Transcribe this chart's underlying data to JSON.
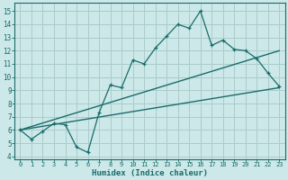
{
  "xlabel": "Humidex (Indice chaleur)",
  "bg_color": "#cce8e8",
  "grid_color": "#aacccc",
  "line_color": "#1a6b6b",
  "xlim": [
    -0.5,
    23.5
  ],
  "ylim": [
    3.8,
    15.6
  ],
  "yticks": [
    4,
    5,
    6,
    7,
    8,
    9,
    10,
    11,
    12,
    13,
    14,
    15
  ],
  "xticks": [
    0,
    1,
    2,
    3,
    4,
    5,
    6,
    7,
    8,
    9,
    10,
    11,
    12,
    13,
    14,
    15,
    16,
    17,
    18,
    19,
    20,
    21,
    22,
    23
  ],
  "curve1_x": [
    0,
    1,
    2,
    3,
    4,
    5,
    6,
    7,
    8,
    9,
    10,
    11,
    12,
    13,
    14,
    15,
    16,
    17,
    18,
    19,
    20,
    21,
    22,
    23
  ],
  "curve1_y": [
    6.0,
    5.3,
    5.9,
    6.5,
    6.4,
    4.7,
    4.3,
    7.3,
    9.4,
    9.2,
    11.3,
    11.0,
    12.2,
    13.1,
    14.0,
    13.7,
    15.0,
    12.4,
    12.8,
    12.1,
    12.0,
    11.4,
    10.3,
    9.3
  ],
  "line1_x": [
    0,
    23
  ],
  "line1_y": [
    6.0,
    12.0
  ],
  "line2_x": [
    0,
    23
  ],
  "line2_y": [
    6.0,
    9.2
  ]
}
